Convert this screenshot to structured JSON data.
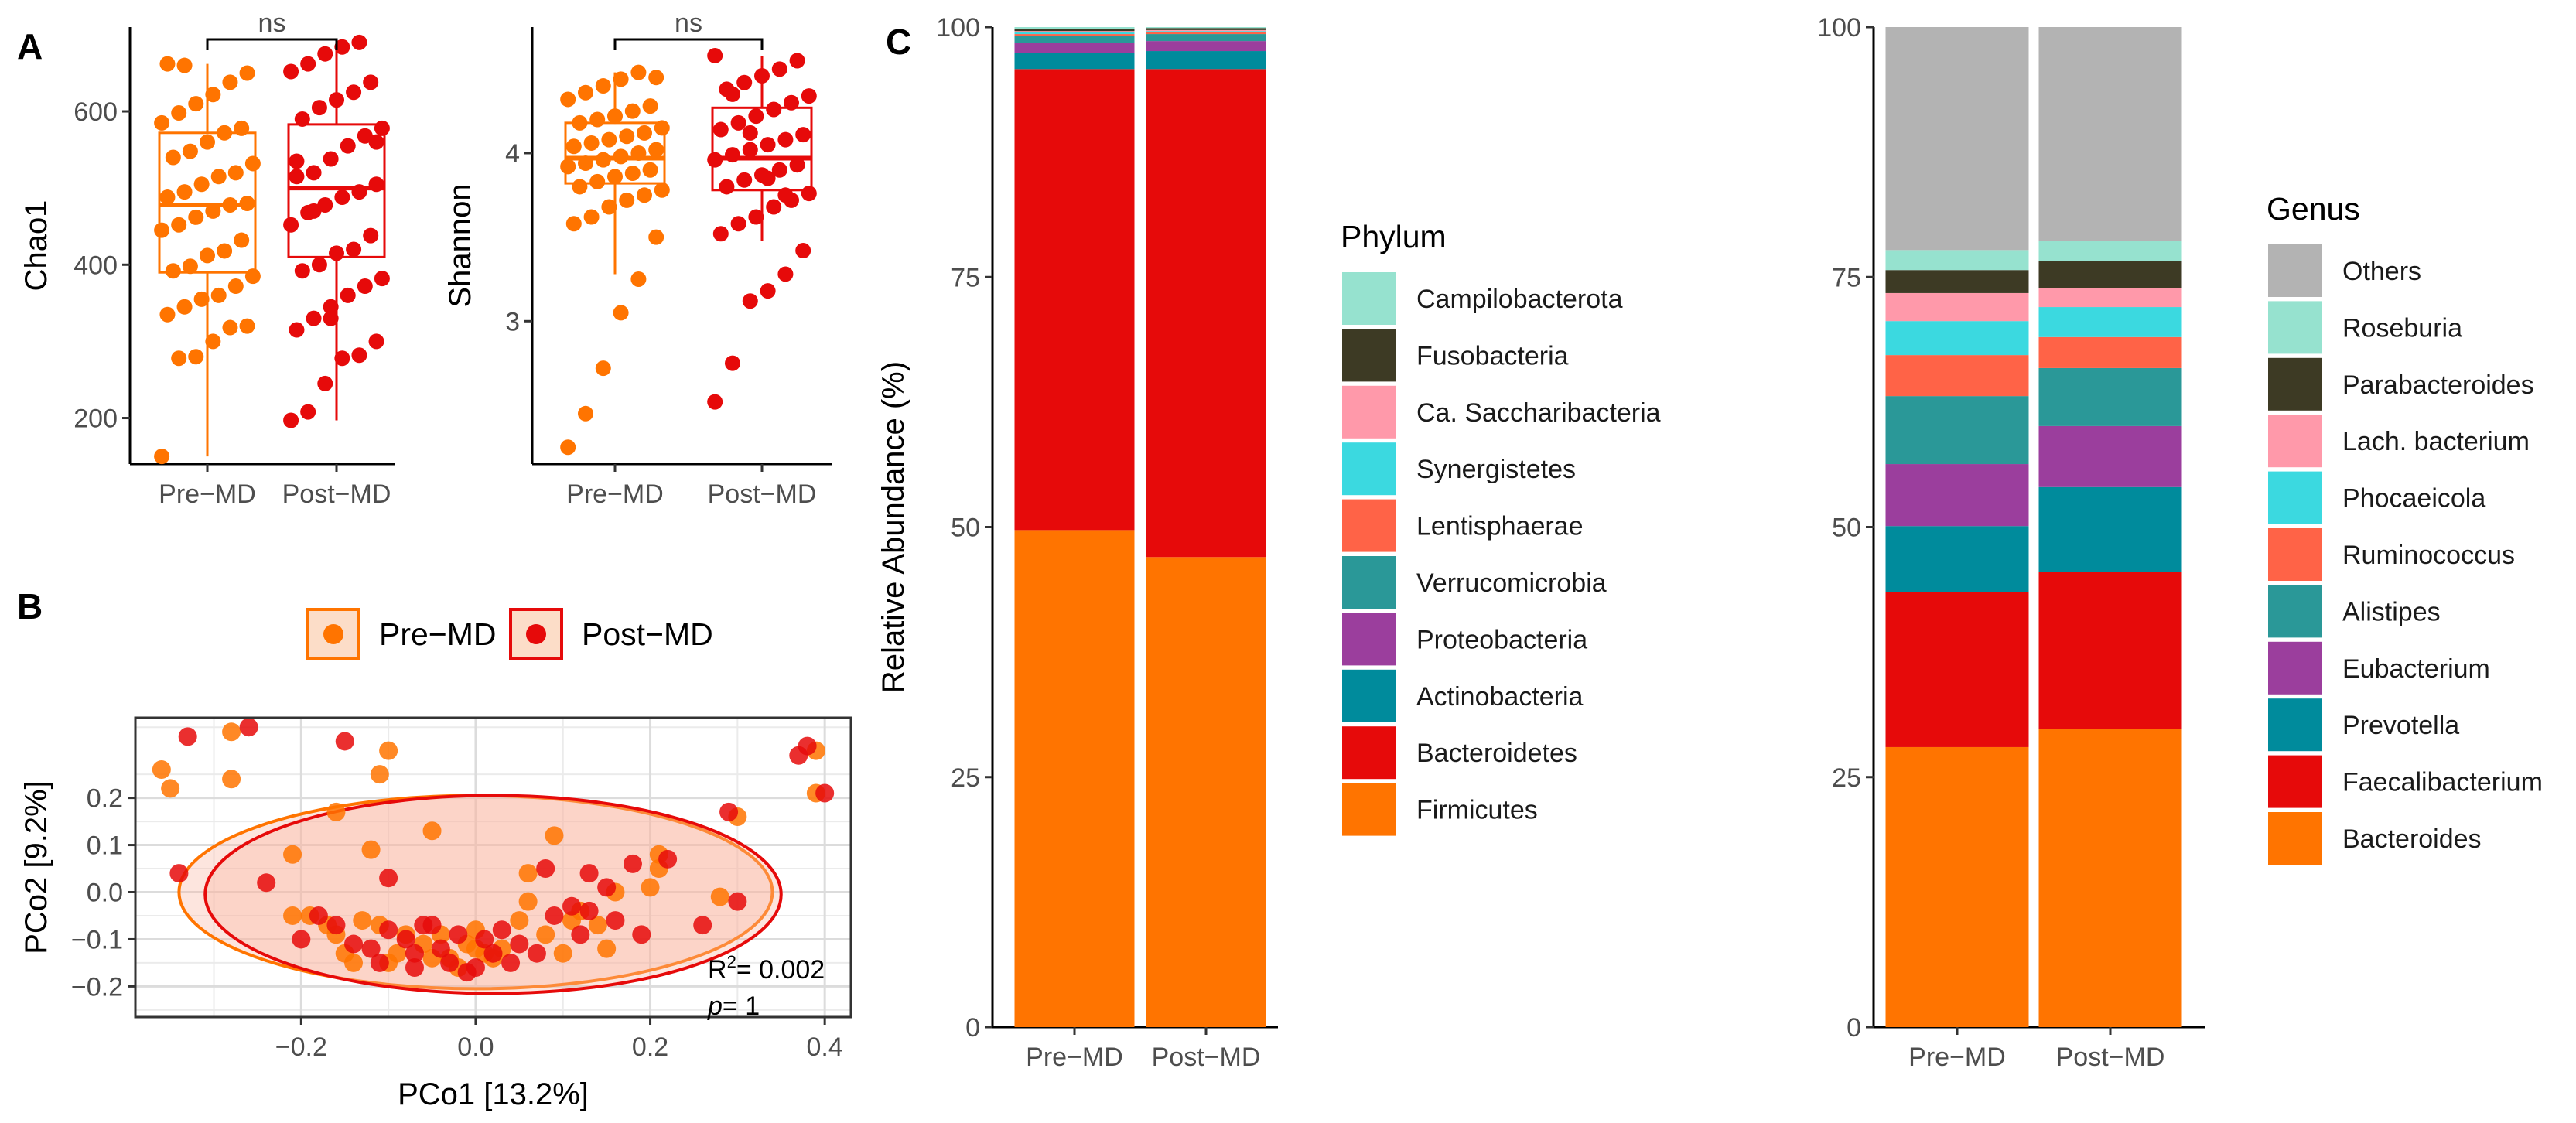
{
  "panels": {
    "a": "A",
    "b": "B",
    "c": "C"
  },
  "colors": {
    "pre": "#FF7400",
    "post": "#E60A0A",
    "grid": "#ebebeb"
  },
  "chart_data": [
    {
      "id": "chao1",
      "type": "box",
      "panel": "A",
      "ylabel": "Chao1",
      "categories": [
        "Pre−MD",
        "Post−MD"
      ],
      "ylim": [
        140,
        710
      ],
      "yticks": [
        200,
        400,
        600
      ],
      "sig": "ns",
      "boxes": [
        {
          "name": "Pre−MD",
          "min": 150,
          "q1": 390,
          "median": 478,
          "q3": 572,
          "max": 662
        },
        {
          "name": "Post−MD",
          "min": 197,
          "q1": 410,
          "median": 500,
          "q3": 583,
          "max": 690
        }
      ],
      "points": [
        [
          150,
          278,
          280,
          300,
          318,
          320,
          335,
          345,
          355,
          360,
          372,
          385,
          392,
          398,
          412,
          418,
          432,
          445,
          452,
          462,
          470,
          478,
          480,
          488,
          495,
          505,
          515,
          520,
          532,
          540,
          548,
          560,
          572,
          578,
          585,
          598,
          610,
          622,
          638,
          650,
          662,
          660
        ],
        [
          197,
          208,
          245,
          278,
          282,
          300,
          315,
          330,
          345,
          360,
          372,
          382,
          392,
          400,
          415,
          420,
          438,
          452,
          468,
          478,
          488,
          495,
          505,
          515,
          520,
          538,
          555,
          568,
          578,
          590,
          605,
          615,
          625,
          638,
          652,
          662,
          675,
          684,
          690,
          560,
          535,
          470,
          330
        ]
      ]
    },
    {
      "id": "shannon",
      "type": "box",
      "panel": "A",
      "ylabel": "Shannon",
      "categories": [
        "Pre−MD",
        "Post−MD"
      ],
      "ylim": [
        2.15,
        4.75
      ],
      "yticks": [
        3,
        4
      ],
      "sig": "ns",
      "boxes": [
        {
          "name": "Pre−MD",
          "min": 3.28,
          "q1": 3.82,
          "median": 3.97,
          "q3": 4.18,
          "max": 4.48
        },
        {
          "name": "Post−MD",
          "min": 3.48,
          "q1": 3.78,
          "median": 3.97,
          "q3": 4.27,
          "max": 4.58
        }
      ],
      "points": [
        [
          2.25,
          2.45,
          2.72,
          3.05,
          3.25,
          3.5,
          3.58,
          3.62,
          3.68,
          3.72,
          3.75,
          3.78,
          3.8,
          3.83,
          3.86,
          3.88,
          3.9,
          3.92,
          3.94,
          3.96,
          3.98,
          4.0,
          4.02,
          4.04,
          4.06,
          4.08,
          4.1,
          4.12,
          4.15,
          4.18,
          4.2,
          4.22,
          4.25,
          4.28,
          4.32,
          4.36,
          4.4,
          4.44,
          4.48,
          4.45
        ],
        [
          2.52,
          2.75,
          3.12,
          3.18,
          3.28,
          3.42,
          3.52,
          3.58,
          3.62,
          3.68,
          3.72,
          3.76,
          3.8,
          3.84,
          3.87,
          3.9,
          3.93,
          3.96,
          3.99,
          4.02,
          4.05,
          4.08,
          4.11,
          4.14,
          4.18,
          4.22,
          4.26,
          4.3,
          4.34,
          4.38,
          4.42,
          4.46,
          4.5,
          4.55,
          4.58,
          4.35,
          4.12,
          3.85,
          3.75
        ]
      ]
    },
    {
      "id": "pcoa",
      "type": "scatter",
      "panel": "B",
      "xlabel": "PCo1 [13.2%]",
      "ylabel": "PCo2 [9.2%]",
      "xlim": [
        -0.39,
        0.43
      ],
      "ylim": [
        -0.265,
        0.37
      ],
      "xticks": [
        -0.2,
        0.0,
        0.2,
        0.4
      ],
      "yticks": [
        -0.2,
        -0.1,
        0.0,
        0.1,
        0.2
      ],
      "legend": [
        "Pre−MD",
        "Post−MD"
      ],
      "r2": "= 0.002",
      "r2_label": "R",
      "p_label": "p",
      "p_value": "= 1",
      "ellipses": [
        {
          "name": "Pre−MD",
          "cx": 0.0,
          "cy": 0.0,
          "rx": 0.34,
          "ry": 0.205
        },
        {
          "name": "Post−MD",
          "cx": 0.02,
          "cy": -0.005,
          "rx": 0.33,
          "ry": 0.21
        }
      ],
      "pre": [
        [
          -0.35,
          0.22
        ],
        [
          -0.36,
          0.26
        ],
        [
          -0.28,
          0.24
        ],
        [
          -0.28,
          0.34
        ],
        [
          -0.1,
          0.3
        ],
        [
          -0.11,
          0.25
        ],
        [
          -0.16,
          0.17
        ],
        [
          0.39,
          0.3
        ],
        [
          0.39,
          0.21
        ],
        [
          0.3,
          0.16
        ],
        [
          -0.21,
          0.08
        ],
        [
          -0.12,
          0.09
        ],
        [
          -0.05,
          0.13
        ],
        [
          0.09,
          0.12
        ],
        [
          0.06,
          0.04
        ],
        [
          0.21,
          0.08
        ],
        [
          0.21,
          0.05
        ],
        [
          -0.21,
          -0.05
        ],
        [
          -0.19,
          -0.05
        ],
        [
          -0.17,
          -0.07
        ],
        [
          -0.16,
          -0.09
        ],
        [
          -0.15,
          -0.13
        ],
        [
          -0.13,
          -0.06
        ],
        [
          -0.11,
          -0.07
        ],
        [
          -0.1,
          -0.15
        ],
        [
          -0.09,
          -0.13
        ],
        [
          -0.08,
          -0.09
        ],
        [
          -0.06,
          -0.11
        ],
        [
          -0.05,
          -0.14
        ],
        [
          -0.04,
          -0.09
        ],
        [
          -0.03,
          -0.14
        ],
        [
          -0.02,
          -0.16
        ],
        [
          -0.01,
          -0.11
        ],
        [
          0.0,
          -0.08
        ],
        [
          0.01,
          -0.13
        ],
        [
          0.02,
          -0.14
        ],
        [
          0.03,
          -0.12
        ],
        [
          0.05,
          -0.06
        ],
        [
          0.06,
          -0.02
        ],
        [
          0.08,
          -0.09
        ],
        [
          0.1,
          -0.13
        ],
        [
          0.11,
          -0.06
        ],
        [
          0.12,
          -0.04
        ],
        [
          0.14,
          -0.07
        ],
        [
          0.16,
          0.0
        ],
        [
          0.2,
          0.01
        ],
        [
          0.28,
          -0.01
        ],
        [
          -0.14,
          -0.15
        ],
        [
          0.0,
          -0.12
        ],
        [
          0.15,
          -0.12
        ]
      ],
      "post": [
        [
          -0.33,
          0.33
        ],
        [
          -0.26,
          0.35
        ],
        [
          -0.15,
          0.32
        ],
        [
          -0.34,
          0.04
        ],
        [
          -0.24,
          0.02
        ],
        [
          -0.1,
          0.03
        ],
        [
          0.08,
          0.05
        ],
        [
          0.13,
          0.04
        ],
        [
          0.18,
          0.06
        ],
        [
          0.22,
          0.07
        ],
        [
          0.29,
          0.17
        ],
        [
          0.37,
          0.29
        ],
        [
          0.38,
          0.31
        ],
        [
          0.4,
          0.21
        ],
        [
          0.3,
          -0.02
        ],
        [
          0.19,
          -0.09
        ],
        [
          -0.18,
          -0.05
        ],
        [
          -0.16,
          -0.07
        ],
        [
          -0.14,
          -0.11
        ],
        [
          -0.12,
          -0.12
        ],
        [
          -0.1,
          -0.08
        ],
        [
          -0.08,
          -0.1
        ],
        [
          -0.07,
          -0.13
        ],
        [
          -0.06,
          -0.07
        ],
        [
          -0.04,
          -0.12
        ],
        [
          -0.03,
          -0.15
        ],
        [
          -0.02,
          -0.09
        ],
        [
          -0.01,
          -0.17
        ],
        [
          0.0,
          -0.16
        ],
        [
          0.01,
          -0.1
        ],
        [
          0.03,
          -0.08
        ],
        [
          0.04,
          -0.15
        ],
        [
          0.05,
          -0.11
        ],
        [
          0.07,
          -0.13
        ],
        [
          0.09,
          -0.05
        ],
        [
          0.11,
          -0.03
        ],
        [
          0.12,
          -0.09
        ],
        [
          0.13,
          -0.04
        ],
        [
          0.15,
          0.01
        ],
        [
          0.16,
          -0.06
        ],
        [
          -0.05,
          -0.07
        ],
        [
          -0.11,
          -0.15
        ],
        [
          0.02,
          -0.13
        ],
        [
          0.26,
          -0.07
        ],
        [
          -0.2,
          -0.1
        ],
        [
          -0.07,
          -0.16
        ]
      ]
    },
    {
      "id": "phylum",
      "type": "stacked_bar",
      "panel": "C",
      "ylabel": "Relative Abundance (%)",
      "categories": [
        "Pre−MD",
        "Post−MD"
      ],
      "ylim": [
        0,
        100
      ],
      "yticks": [
        0,
        25,
        50,
        75,
        100
      ],
      "legend_title": "Phylum",
      "series": [
        {
          "name": "Firmicutes",
          "color": "#FF7400",
          "values": [
            49.7,
            47.0
          ]
        },
        {
          "name": "Bacteroidetes",
          "color": "#E60A0A",
          "values": [
            46.1,
            48.8
          ]
        },
        {
          "name": "Actinobacteria",
          "color": "#008B9C",
          "values": [
            1.6,
            1.8
          ]
        },
        {
          "name": "Proteobacteria",
          "color": "#9B3E9D",
          "values": [
            1.0,
            1.0
          ]
        },
        {
          "name": "Verrucomicrobia",
          "color": "#2A9898",
          "values": [
            0.7,
            0.7
          ]
        },
        {
          "name": "Lentisphaerae",
          "color": "#FF6347",
          "values": [
            0.2,
            0.2
          ]
        },
        {
          "name": "Synergistetes",
          "color": "#3BD9E0",
          "values": [
            0.2,
            0.1
          ]
        },
        {
          "name": "Ca. Saccharibacteria",
          "color": "#FF99AA",
          "values": [
            0.1,
            0.1
          ]
        },
        {
          "name": "Fusobacteria",
          "color": "#3D3A24",
          "values": [
            0.2,
            0.2
          ]
        },
        {
          "name": "Campilobacterota",
          "color": "#96E2CF",
          "values": [
            0.2,
            0.1
          ]
        }
      ]
    },
    {
      "id": "genus",
      "type": "stacked_bar",
      "panel": "C",
      "ylabel": "",
      "categories": [
        "Pre−MD",
        "Post−MD"
      ],
      "ylim": [
        0,
        100
      ],
      "yticks": [
        0,
        25,
        50,
        75,
        100
      ],
      "legend_title": "Genus",
      "series": [
        {
          "name": "Bacteroides",
          "color": "#FF7400",
          "values": [
            28.0,
            29.8
          ]
        },
        {
          "name": "Faecalibacterium",
          "color": "#E60A0A",
          "values": [
            15.5,
            15.7
          ]
        },
        {
          "name": "Prevotella",
          "color": "#008B9C",
          "values": [
            6.6,
            8.5
          ]
        },
        {
          "name": "Eubacterium",
          "color": "#9B3E9D",
          "values": [
            6.2,
            6.1
          ]
        },
        {
          "name": "Alistipes",
          "color": "#2A9898",
          "values": [
            6.8,
            5.8
          ]
        },
        {
          "name": "Ruminococcus",
          "color": "#FF6347",
          "values": [
            4.1,
            3.1
          ]
        },
        {
          "name": "Phocaeicola",
          "color": "#3BD9E0",
          "values": [
            3.4,
            3.0
          ]
        },
        {
          "name": "Lach. bacterium",
          "color": "#FF99AA",
          "values": [
            2.8,
            1.9
          ]
        },
        {
          "name": "Parabacteroides",
          "color": "#3D3A24",
          "values": [
            2.3,
            2.7
          ]
        },
        {
          "name": "Roseburia",
          "color": "#96E2CF",
          "values": [
            2.0,
            2.0
          ]
        },
        {
          "name": "Others",
          "color": "#B3B3B3",
          "values": [
            22.3,
            21.4
          ]
        }
      ]
    }
  ]
}
